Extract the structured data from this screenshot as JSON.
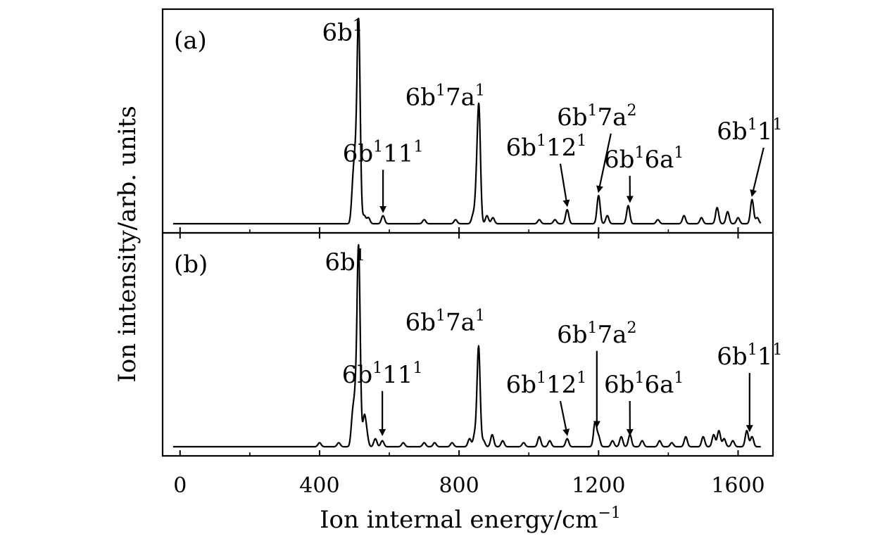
{
  "chart_data": {
    "type": "line",
    "xlabel": "Ion internal energy/cm",
    "xlabel_superscript": "−1",
    "ylabel": "Ion intensity/arb. units",
    "xlim": [
      -50,
      1700
    ],
    "ylim": [
      0,
      1
    ],
    "x_ticks": [
      "0",
      "400",
      "800",
      "1200",
      "1600"
    ],
    "x_tick_values": [
      0,
      400,
      800,
      1200,
      1600
    ],
    "grid": false,
    "line_color": "#000000",
    "panels": [
      {
        "label": "(a)",
        "peaks": [
          {
            "x": 496,
            "y": 0.18
          },
          {
            "x": 503,
            "y": 0.25
          },
          {
            "x": 512,
            "y": 1.0
          },
          {
            "x": 528,
            "y": 0.04
          },
          {
            "x": 540,
            "y": 0.03
          },
          {
            "x": 582,
            "y": 0.04
          },
          {
            "x": 700,
            "y": 0.02
          },
          {
            "x": 790,
            "y": 0.02
          },
          {
            "x": 840,
            "y": 0.04
          },
          {
            "x": 850,
            "y": 0.15
          },
          {
            "x": 857,
            "y": 0.55
          },
          {
            "x": 880,
            "y": 0.04
          },
          {
            "x": 897,
            "y": 0.03
          },
          {
            "x": 1030,
            "y": 0.02
          },
          {
            "x": 1075,
            "y": 0.02
          },
          {
            "x": 1110,
            "y": 0.07
          },
          {
            "x": 1200,
            "y": 0.14
          },
          {
            "x": 1225,
            "y": 0.04
          },
          {
            "x": 1285,
            "y": 0.09
          },
          {
            "x": 1370,
            "y": 0.02
          },
          {
            "x": 1445,
            "y": 0.04
          },
          {
            "x": 1495,
            "y": 0.03
          },
          {
            "x": 1540,
            "y": 0.08
          },
          {
            "x": 1570,
            "y": 0.06
          },
          {
            "x": 1600,
            "y": 0.03
          },
          {
            "x": 1640,
            "y": 0.12
          },
          {
            "x": 1655,
            "y": 0.03
          }
        ],
        "annotations": [
          {
            "base": "6b",
            "parts": [
              [
                "1",
                "sup"
              ]
            ],
            "x": 465,
            "y": 0.91,
            "arrow": false
          },
          {
            "base": "6b",
            "parts": [
              [
                "1",
                "sup"
              ],
              [
                "7a",
                "base"
              ],
              [
                "1",
                "sup"
              ]
            ],
            "x": 760,
            "y": 0.59,
            "arrow": false
          },
          {
            "base": "6b",
            "parts": [
              [
                "1",
                "sup"
              ],
              [
                "11",
                "base"
              ],
              [
                "1",
                "sup"
              ]
            ],
            "x": 582,
            "y": 0.31,
            "arrow": true,
            "tip_x": 582,
            "tip_y": 0.06
          },
          {
            "base": "6b",
            "parts": [
              [
                "1",
                "sup"
              ],
              [
                "12",
                "base"
              ],
              [
                "1",
                "sup"
              ]
            ],
            "x": 1050,
            "y": 0.34,
            "arrow": true,
            "tip_x": 1110,
            "tip_y": 0.09
          },
          {
            "base": "6b",
            "parts": [
              [
                "1",
                "sup"
              ],
              [
                "7a",
                "base"
              ],
              [
                "2",
                "sup"
              ]
            ],
            "x": 1195,
            "y": 0.49,
            "arrow": true,
            "tip_x": 1200,
            "tip_y": 0.16
          },
          {
            "base": "6b",
            "parts": [
              [
                "1",
                "sup"
              ],
              [
                "6a",
                "base"
              ],
              [
                "1",
                "sup"
              ]
            ],
            "x": 1330,
            "y": 0.28,
            "arrow": true,
            "tip_x": 1290,
            "tip_y": 0.11
          },
          {
            "base": "6b",
            "parts": [
              [
                "1",
                "sup"
              ],
              [
                "1",
                "base"
              ],
              [
                "1",
                "sup"
              ]
            ],
            "x": 1633,
            "y": 0.42,
            "arrow": true,
            "tip_x": 1640,
            "tip_y": 0.14
          }
        ]
      },
      {
        "label": "(b)",
        "peaks": [
          {
            "x": 400,
            "y": 0.02
          },
          {
            "x": 455,
            "y": 0.02
          },
          {
            "x": 495,
            "y": 0.15
          },
          {
            "x": 503,
            "y": 0.2
          },
          {
            "x": 512,
            "y": 0.98
          },
          {
            "x": 528,
            "y": 0.14
          },
          {
            "x": 535,
            "y": 0.06
          },
          {
            "x": 560,
            "y": 0.04
          },
          {
            "x": 580,
            "y": 0.03
          },
          {
            "x": 640,
            "y": 0.02
          },
          {
            "x": 700,
            "y": 0.02
          },
          {
            "x": 730,
            "y": 0.02
          },
          {
            "x": 780,
            "y": 0.02
          },
          {
            "x": 830,
            "y": 0.04
          },
          {
            "x": 845,
            "y": 0.06
          },
          {
            "x": 856,
            "y": 0.5
          },
          {
            "x": 870,
            "y": 0.03
          },
          {
            "x": 895,
            "y": 0.06
          },
          {
            "x": 925,
            "y": 0.03
          },
          {
            "x": 985,
            "y": 0.02
          },
          {
            "x": 1030,
            "y": 0.05
          },
          {
            "x": 1060,
            "y": 0.03
          },
          {
            "x": 1110,
            "y": 0.04
          },
          {
            "x": 1190,
            "y": 0.12
          },
          {
            "x": 1200,
            "y": 0.05
          },
          {
            "x": 1240,
            "y": 0.03
          },
          {
            "x": 1265,
            "y": 0.05
          },
          {
            "x": 1290,
            "y": 0.06
          },
          {
            "x": 1325,
            "y": 0.03
          },
          {
            "x": 1375,
            "y": 0.03
          },
          {
            "x": 1410,
            "y": 0.02
          },
          {
            "x": 1450,
            "y": 0.05
          },
          {
            "x": 1500,
            "y": 0.05
          },
          {
            "x": 1530,
            "y": 0.06
          },
          {
            "x": 1545,
            "y": 0.08
          },
          {
            "x": 1560,
            "y": 0.04
          },
          {
            "x": 1585,
            "y": 0.03
          },
          {
            "x": 1625,
            "y": 0.08
          },
          {
            "x": 1640,
            "y": 0.05
          }
        ],
        "annotations": [
          {
            "base": "6b",
            "parts": [
              [
                "1",
                "sup"
              ]
            ],
            "x": 473,
            "y": 0.88,
            "arrow": false
          },
          {
            "base": "6b",
            "parts": [
              [
                "1",
                "sup"
              ],
              [
                "7a",
                "base"
              ],
              [
                "1",
                "sup"
              ]
            ],
            "x": 760,
            "y": 0.58,
            "arrow": false
          },
          {
            "base": "6b",
            "parts": [
              [
                "1",
                "sup"
              ],
              [
                "11",
                "base"
              ],
              [
                "1",
                "sup"
              ]
            ],
            "x": 580,
            "y": 0.32,
            "arrow": true,
            "tip_x": 580,
            "tip_y": 0.06
          },
          {
            "base": "6b",
            "parts": [
              [
                "1",
                "sup"
              ],
              [
                "12",
                "base"
              ],
              [
                "1",
                "sup"
              ]
            ],
            "x": 1050,
            "y": 0.27,
            "arrow": true,
            "tip_x": 1110,
            "tip_y": 0.06
          },
          {
            "base": "6b",
            "parts": [
              [
                "1",
                "sup"
              ],
              [
                "7a",
                "base"
              ],
              [
                "2",
                "sup"
              ]
            ],
            "x": 1195,
            "y": 0.52,
            "arrow": true,
            "tip_x": 1195,
            "tip_y": 0.1
          },
          {
            "base": "6b",
            "parts": [
              [
                "1",
                "sup"
              ],
              [
                "6a",
                "base"
              ],
              [
                "1",
                "sup"
              ]
            ],
            "x": 1330,
            "y": 0.27,
            "arrow": true,
            "tip_x": 1290,
            "tip_y": 0.06
          },
          {
            "base": "6b",
            "parts": [
              [
                "1",
                "sup"
              ],
              [
                "1",
                "base"
              ],
              [
                "1",
                "sup"
              ]
            ],
            "x": 1633,
            "y": 0.41,
            "arrow": true,
            "tip_x": 1633,
            "tip_y": 0.08
          }
        ]
      }
    ]
  }
}
